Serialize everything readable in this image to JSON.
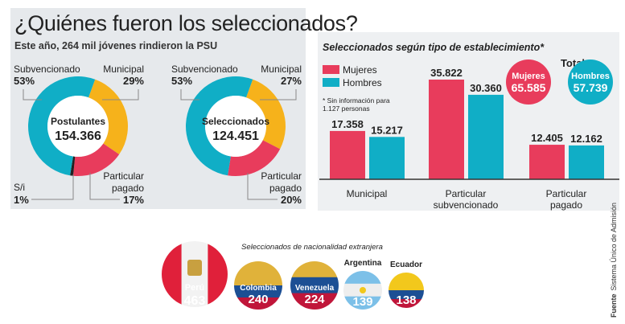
{
  "title": "¿Quiénes fueron los seleccionados?",
  "subtitle": "Este año, 264 mil jóvenes rindieron la PSU",
  "colors": {
    "municipal": "#f6b21b",
    "particular": "#e83c5c",
    "subvencionado": "#10aec6",
    "si": "#222222",
    "mujeres": "#e83c5c",
    "hombres": "#10aec6"
  },
  "chart_data": [
    {
      "type": "pie",
      "title": "Postulantes",
      "total": "154.366",
      "slices": [
        {
          "label": "Municipal",
          "value": 29,
          "text": "29%"
        },
        {
          "label": "Particular pagado",
          "value": 17,
          "text": "17%"
        },
        {
          "label": "S/i",
          "value": 1,
          "text": "1%"
        },
        {
          "label": "Subvencionado",
          "value": 53,
          "text": "53%"
        }
      ]
    },
    {
      "type": "pie",
      "title": "Seleccionados",
      "total": "124.451",
      "slices": [
        {
          "label": "Municipal",
          "value": 27,
          "text": "27%"
        },
        {
          "label": "Particular pagado",
          "value": 20,
          "text": "20%"
        },
        {
          "label": "Subvencionado",
          "value": 53,
          "text": "53%"
        }
      ]
    },
    {
      "type": "bar",
      "title": "Seleccionados según tipo de establecimiento*",
      "note": "* Sin información para 1.127 personas",
      "categories": [
        "Municipal",
        "Particular subvencionado",
        "Particular pagado"
      ],
      "series": [
        {
          "name": "Mujeres",
          "values": [
            17358,
            35822,
            12405
          ],
          "labels": [
            "17.358",
            "35.822",
            "12.405"
          ]
        },
        {
          "name": "Hombres",
          "values": [
            15217,
            30360,
            12162
          ],
          "labels": [
            "15.217",
            "30.360",
            "12.162"
          ]
        }
      ],
      "ylim": [
        0,
        36000
      ],
      "totals": {
        "heading": "Total",
        "items": [
          {
            "name": "Mujeres",
            "value": "65.585"
          },
          {
            "name": "Hombres",
            "value": "57.739"
          }
        ]
      }
    },
    {
      "type": "bar",
      "title": "Seleccionados de nacionalidad extranjera",
      "categories": [
        "Perú",
        "Colombia",
        "Venezuela",
        "Argentina",
        "Ecuador"
      ],
      "values": [
        463,
        240,
        224,
        139,
        138
      ]
    }
  ],
  "source": {
    "label": "Fuente",
    "text": "Sistema Único de Admisión"
  }
}
